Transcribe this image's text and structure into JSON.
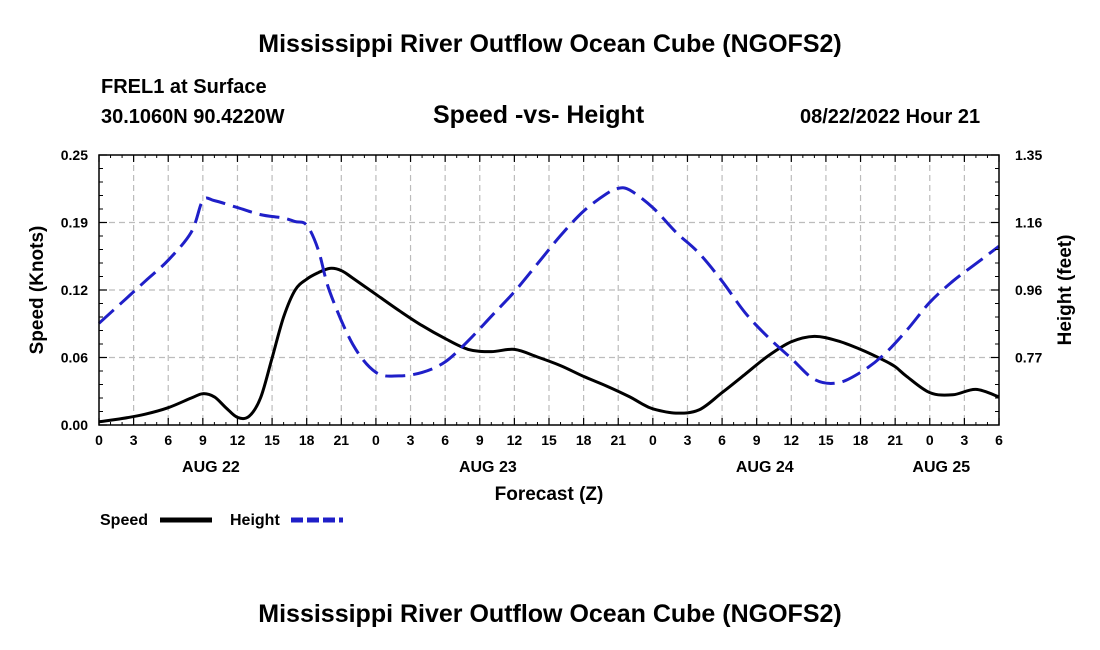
{
  "page": {
    "title": "Mississippi River Outflow Ocean Cube (NGOFS2)",
    "station": "FREL1 at Surface",
    "coordinates": "30.1060N  90.4220W",
    "subtitle": "Speed -vs- Height",
    "datetime": "08/22/2022 Hour 21",
    "footer_title": "Mississippi River Outflow Ocean Cube (NGOFS2)"
  },
  "chart_data": {
    "type": "line",
    "title": "Speed -vs- Height",
    "xlabel": "Forecast (Z)",
    "ylabel": "Speed (Knots)",
    "y2label": "Height (feet)",
    "x_range_hours": [
      0,
      78
    ],
    "ylim": [
      0,
      0.25
    ],
    "y2lim": [
      0.58,
      1.35
    ],
    "y_ticks": [
      "0.00",
      "0.06",
      "0.12",
      "0.19",
      "0.25"
    ],
    "y2_ticks": [
      "0.77",
      "0.96",
      "1.16",
      "1.35"
    ],
    "x_tick_labels": [
      "0",
      "3",
      "6",
      "9",
      "12",
      "15",
      "18",
      "21",
      "0",
      "3",
      "6",
      "9",
      "12",
      "15",
      "18",
      "21",
      "0",
      "3",
      "6",
      "9",
      "12",
      "15",
      "18",
      "21",
      "0",
      "3",
      "6"
    ],
    "day_labels": [
      {
        "label": "AUG 22",
        "hour": 9.7
      },
      {
        "label": "AUG 23",
        "hour": 33.7
      },
      {
        "label": "AUG 24",
        "hour": 57.7
      },
      {
        "label": "AUG 25",
        "hour": 73
      }
    ],
    "grid": true,
    "legend_position": "bottom-left",
    "series": [
      {
        "name": "Speed",
        "axis": "left",
        "color": "#000000",
        "style": "solid",
        "hours": [
          0,
          2,
          4,
          6,
          8,
          9,
          10,
          11,
          12,
          13,
          14,
          15,
          16,
          17,
          18,
          19,
          20,
          21,
          22,
          24,
          26,
          28,
          30,
          32,
          34,
          36,
          38,
          40,
          42,
          44,
          46,
          47,
          48,
          50,
          52,
          54,
          56,
          58,
          60,
          62,
          64,
          66,
          68,
          69,
          70,
          72,
          74,
          76,
          78
        ],
        "values": [
          0.003,
          0.006,
          0.01,
          0.016,
          0.025,
          0.029,
          0.026,
          0.016,
          0.007,
          0.008,
          0.025,
          0.062,
          0.1,
          0.125,
          0.135,
          0.141,
          0.145,
          0.143,
          0.136,
          0.121,
          0.106,
          0.092,
          0.08,
          0.07,
          0.068,
          0.07,
          0.063,
          0.055,
          0.045,
          0.036,
          0.026,
          0.02,
          0.015,
          0.011,
          0.014,
          0.03,
          0.047,
          0.064,
          0.077,
          0.082,
          0.078,
          0.07,
          0.06,
          0.054,
          0.045,
          0.03,
          0.028,
          0.033,
          0.026
        ]
      },
      {
        "name": "Height",
        "axis": "right",
        "color": "#1f1fc8",
        "style": "dashed",
        "hours": [
          0,
          2,
          4,
          6,
          8,
          9,
          10,
          12,
          14,
          16,
          17,
          18,
          19,
          20,
          22,
          24,
          26,
          28,
          30,
          32,
          34,
          36,
          38,
          40,
          42,
          44,
          45,
          46,
          48,
          50,
          52,
          54,
          56,
          58,
          60,
          62,
          64,
          66,
          68,
          70,
          72,
          74,
          76,
          78
        ],
        "values": [
          0.87,
          0.93,
          0.99,
          1.05,
          1.13,
          1.22,
          1.22,
          1.2,
          1.18,
          1.17,
          1.16,
          1.15,
          1.08,
          0.96,
          0.81,
          0.73,
          0.72,
          0.73,
          0.76,
          0.82,
          0.89,
          0.96,
          1.04,
          1.12,
          1.19,
          1.24,
          1.255,
          1.25,
          1.2,
          1.13,
          1.07,
          0.99,
          0.9,
          0.83,
          0.77,
          0.71,
          0.7,
          0.73,
          0.78,
          0.85,
          0.93,
          0.99,
          1.04,
          1.09
        ]
      }
    ]
  },
  "legend": {
    "speed_label": "Speed",
    "height_label": "Height"
  }
}
